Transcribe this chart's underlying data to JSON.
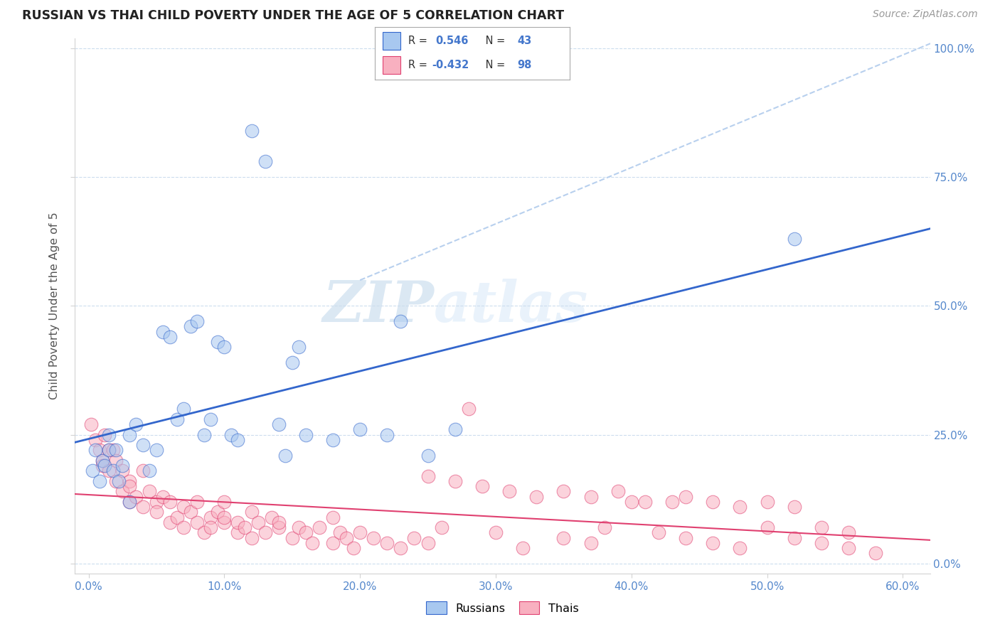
{
  "title": "RUSSIAN VS THAI CHILD POVERTY UNDER THE AGE OF 5 CORRELATION CHART",
  "source": "Source: ZipAtlas.com",
  "ylabel": "Child Poverty Under the Age of 5",
  "xlabel_ticks": [
    "0.0%",
    "10.0%",
    "20.0%",
    "30.0%",
    "40.0%",
    "50.0%",
    "60.0%"
  ],
  "xlabel_vals": [
    0.0,
    10.0,
    20.0,
    30.0,
    40.0,
    50.0,
    60.0
  ],
  "ylabel_ticks_right": [
    "0.0%",
    "25.0%",
    "50.0%",
    "75.0%",
    "100.0%"
  ],
  "ylabel_vals_right": [
    0.0,
    25.0,
    50.0,
    75.0,
    100.0
  ],
  "xlim": [
    -1.0,
    62.0
  ],
  "ylim": [
    -2.0,
    102.0
  ],
  "russian_color": "#A8C8F0",
  "thai_color": "#F8B0C0",
  "russian_line_color": "#3366CC",
  "thai_line_color": "#E04070",
  "diagonal_color": "#B8D0EE",
  "background_color": "#FFFFFF",
  "grid_color": "#CCDDEE",
  "watermark_zip": "ZIP",
  "watermark_atlas": "atlas",
  "legend_r_russian": "0.546",
  "legend_n_russian": "43",
  "legend_r_thai": "-0.432",
  "legend_n_thai": "98",
  "russians_label": "Russians",
  "thais_label": "Thais",
  "russian_scatter_x": [
    0.3,
    0.5,
    0.8,
    1.0,
    1.2,
    1.5,
    1.5,
    1.8,
    2.0,
    2.2,
    2.5,
    3.0,
    3.0,
    3.5,
    4.0,
    4.5,
    5.0,
    5.5,
    6.0,
    6.5,
    7.0,
    7.5,
    8.0,
    8.5,
    9.0,
    9.5,
    10.0,
    10.5,
    11.0,
    12.0,
    13.0,
    14.0,
    14.5,
    15.0,
    15.5,
    16.0,
    18.0,
    20.0,
    22.0,
    23.0,
    25.0,
    27.0,
    52.0
  ],
  "russian_scatter_y": [
    18.0,
    22.0,
    16.0,
    20.0,
    19.0,
    25.0,
    22.0,
    18.0,
    22.0,
    16.0,
    19.0,
    25.0,
    12.0,
    27.0,
    23.0,
    18.0,
    22.0,
    45.0,
    44.0,
    28.0,
    30.0,
    46.0,
    47.0,
    25.0,
    28.0,
    43.0,
    42.0,
    25.0,
    24.0,
    84.0,
    78.0,
    27.0,
    21.0,
    39.0,
    42.0,
    25.0,
    24.0,
    26.0,
    25.0,
    47.0,
    21.0,
    26.0,
    63.0
  ],
  "thai_scatter_x": [
    0.2,
    0.5,
    0.8,
    1.0,
    1.0,
    1.2,
    1.5,
    1.5,
    1.8,
    2.0,
    2.0,
    2.5,
    2.5,
    3.0,
    3.0,
    3.0,
    3.5,
    4.0,
    4.0,
    4.5,
    5.0,
    5.0,
    5.5,
    6.0,
    6.0,
    6.5,
    7.0,
    7.0,
    7.5,
    8.0,
    8.0,
    8.5,
    9.0,
    9.0,
    9.5,
    10.0,
    10.0,
    10.0,
    11.0,
    11.0,
    11.5,
    12.0,
    12.0,
    12.5,
    13.0,
    13.5,
    14.0,
    14.0,
    15.0,
    15.5,
    16.0,
    16.5,
    17.0,
    18.0,
    18.0,
    18.5,
    19.0,
    19.5,
    20.0,
    21.0,
    22.0,
    23.0,
    24.0,
    25.0,
    26.0,
    28.0,
    30.0,
    32.0,
    35.0,
    37.0,
    38.0,
    40.0,
    42.0,
    44.0,
    46.0,
    48.0,
    50.0,
    52.0,
    54.0,
    56.0,
    58.0,
    25.0,
    27.0,
    29.0,
    31.0,
    33.0,
    35.0,
    37.0,
    39.0,
    41.0,
    43.0,
    44.0,
    46.0,
    48.0,
    50.0,
    52.0,
    54.0,
    56.0
  ],
  "thai_scatter_y": [
    27.0,
    24.0,
    22.0,
    20.0,
    19.0,
    25.0,
    22.0,
    18.0,
    22.0,
    20.0,
    16.0,
    18.0,
    14.0,
    16.0,
    12.0,
    15.0,
    13.0,
    18.0,
    11.0,
    14.0,
    12.0,
    10.0,
    13.0,
    8.0,
    12.0,
    9.0,
    11.0,
    7.0,
    10.0,
    8.0,
    12.0,
    6.0,
    9.0,
    7.0,
    10.0,
    8.0,
    12.0,
    9.0,
    6.0,
    8.0,
    7.0,
    10.0,
    5.0,
    8.0,
    6.0,
    9.0,
    7.0,
    8.0,
    5.0,
    7.0,
    6.0,
    4.0,
    7.0,
    9.0,
    4.0,
    6.0,
    5.0,
    3.0,
    6.0,
    5.0,
    4.0,
    3.0,
    5.0,
    4.0,
    7.0,
    30.0,
    6.0,
    3.0,
    5.0,
    4.0,
    7.0,
    12.0,
    6.0,
    5.0,
    4.0,
    3.0,
    7.0,
    5.0,
    4.0,
    3.0,
    2.0,
    17.0,
    16.0,
    15.0,
    14.0,
    13.0,
    14.0,
    13.0,
    14.0,
    12.0,
    12.0,
    13.0,
    12.0,
    11.0,
    12.0,
    11.0,
    7.0,
    6.0
  ]
}
